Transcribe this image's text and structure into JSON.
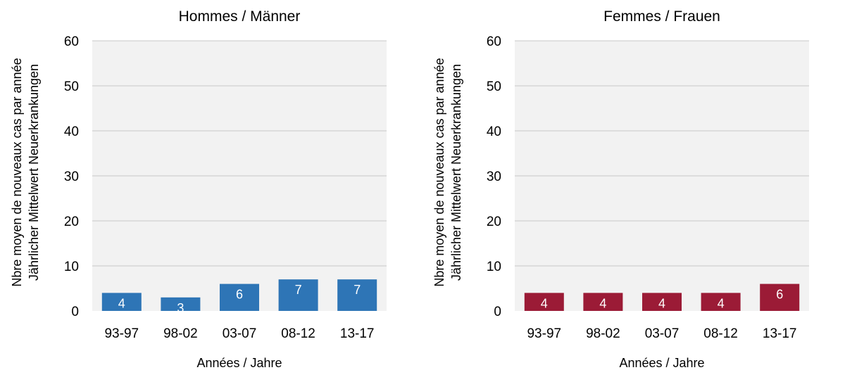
{
  "chart_data": [
    {
      "type": "bar",
      "title": "Hommes / Männer",
      "xlabel": "Années / Jahre",
      "ylabel": [
        "Nbre moyen de nouveaux cas par année",
        "Jährlicher Mittelwert Neuerkrankungen"
      ],
      "categories": [
        "93-97",
        "98-02",
        "03-07",
        "08-12",
        "13-17"
      ],
      "values": [
        4,
        3,
        6,
        7,
        7
      ],
      "ylim": [
        0,
        60
      ],
      "yticks": [
        0,
        10,
        20,
        30,
        40,
        50,
        60
      ],
      "color": "#2e75b6",
      "plot_bg": "#f2f2f2",
      "grid": true,
      "data_labels": true
    },
    {
      "type": "bar",
      "title": "Femmes / Frauen",
      "xlabel": "Années / Jahre",
      "ylabel": [
        "Nbre moyen de nouveaux cas par année",
        "Jährlicher Mittelwert Neuerkrankungen"
      ],
      "categories": [
        "93-97",
        "98-02",
        "03-07",
        "08-12",
        "13-17"
      ],
      "values": [
        4,
        4,
        4,
        4,
        6
      ],
      "ylim": [
        0,
        60
      ],
      "yticks": [
        0,
        10,
        20,
        30,
        40,
        50,
        60
      ],
      "color": "#9b1b36",
      "plot_bg": "#f2f2f2",
      "grid": true,
      "data_labels": true
    }
  ]
}
